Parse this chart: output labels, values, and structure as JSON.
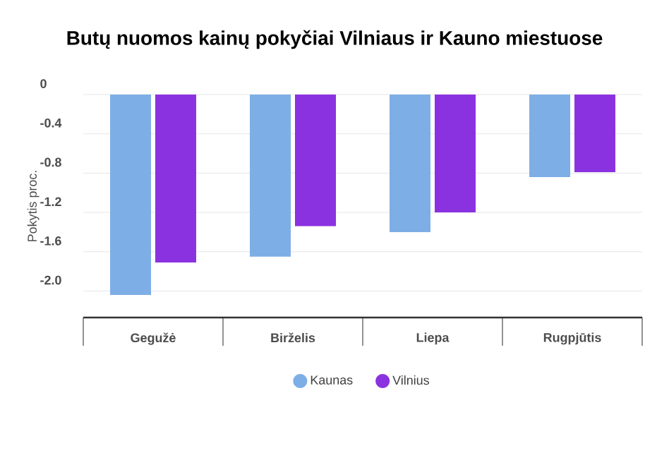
{
  "chart_data": {
    "type": "bar",
    "title": "Butų nuomos kainų pokyčiai Vilniaus ir Kauno miestuose",
    "ylabel": "Pokytis proc.",
    "categories": [
      "Gegužė",
      "Birželis",
      "Liepa",
      "Rugpjūtis"
    ],
    "series": [
      {
        "name": "Kaunas",
        "color": "#7eaee6",
        "values": [
          -2.04,
          -1.65,
          -1.4,
          -0.84
        ]
      },
      {
        "name": "Vilnius",
        "color": "#8b32e0",
        "values": [
          -1.71,
          -1.34,
          -1.2,
          -0.79
        ]
      }
    ],
    "ylim": [
      -2.27,
      0
    ],
    "yticks": [
      0,
      {
        "value": -0.4,
        "label": "-0.4"
      },
      {
        "value": -0.8,
        "label": "-0.8"
      },
      {
        "value": -1.2,
        "label": "-1.2"
      },
      {
        "value": -1.6,
        "label": "-1.6"
      },
      {
        "value": -2.0,
        "label": "-2.0"
      }
    ],
    "grid": "y",
    "legend": "bottom"
  }
}
